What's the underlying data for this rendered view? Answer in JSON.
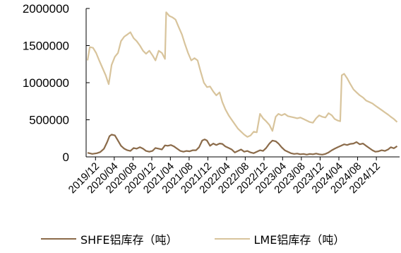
{
  "chart_data": {
    "type": "line",
    "title": "",
    "xlabel": "",
    "ylabel": "",
    "ylim": [
      0,
      2000000
    ],
    "yticks": [
      0,
      500000,
      1000000,
      1500000,
      2000000
    ],
    "ytick_labels": [
      "0",
      "500000",
      "1000000",
      "1500000",
      "2000000"
    ],
    "xlim": [
      "2019-10",
      "2025-05"
    ],
    "xticks": [
      "2019-12",
      "2020-04",
      "2020-08",
      "2020-12",
      "2021-04",
      "2021-08",
      "2021-12",
      "2022-04",
      "2022-08",
      "2022-12",
      "2023-04",
      "2023-08",
      "2023-12",
      "2024-04",
      "2024-08",
      "2024-12"
    ],
    "xtick_labels": [
      "2019/12",
      "2020/04",
      "2020/08",
      "2020/12",
      "2021/04",
      "2021/08",
      "2021/12",
      "2022/04",
      "2022/08",
      "2022/12",
      "2023/04",
      "2023/08",
      "2023/12",
      "2024/04",
      "2024/08",
      "2024/12"
    ],
    "grid": false,
    "legend_position": "bottom",
    "series": [
      {
        "name": "SHFE铝库存（吨）",
        "color": "#8B6B4A",
        "points": [
          [
            "2019-10-10",
            55000
          ],
          [
            "2019-11-10",
            40000
          ],
          [
            "2019-12-10",
            50000
          ],
          [
            "2020-01-01",
            65000
          ],
          [
            "2020-01-25",
            110000
          ],
          [
            "2020-02-15",
            200000
          ],
          [
            "2020-03-01",
            280000
          ],
          [
            "2020-03-15",
            300000
          ],
          [
            "2020-04-05",
            290000
          ],
          [
            "2020-04-25",
            220000
          ],
          [
            "2020-05-15",
            150000
          ],
          [
            "2020-06-05",
            110000
          ],
          [
            "2020-06-25",
            90000
          ],
          [
            "2020-07-15",
            80000
          ],
          [
            "2020-08-05",
            120000
          ],
          [
            "2020-08-25",
            110000
          ],
          [
            "2020-09-15",
            130000
          ],
          [
            "2020-10-05",
            110000
          ],
          [
            "2020-10-25",
            80000
          ],
          [
            "2020-11-15",
            70000
          ],
          [
            "2020-12-05",
            80000
          ],
          [
            "2020-12-25",
            120000
          ],
          [
            "2021-01-15",
            110000
          ],
          [
            "2021-02-05",
            100000
          ],
          [
            "2021-02-25",
            155000
          ],
          [
            "2021-03-15",
            150000
          ],
          [
            "2021-04-05",
            160000
          ],
          [
            "2021-04-25",
            140000
          ],
          [
            "2021-05-15",
            110000
          ],
          [
            "2021-06-05",
            80000
          ],
          [
            "2021-06-25",
            70000
          ],
          [
            "2021-07-15",
            80000
          ],
          [
            "2021-08-05",
            75000
          ],
          [
            "2021-08-25",
            90000
          ],
          [
            "2021-09-15",
            90000
          ],
          [
            "2021-10-05",
            130000
          ],
          [
            "2021-10-25",
            220000
          ],
          [
            "2021-11-10",
            235000
          ],
          [
            "2021-11-25",
            220000
          ],
          [
            "2021-12-15",
            150000
          ],
          [
            "2022-01-05",
            180000
          ],
          [
            "2022-01-25",
            160000
          ],
          [
            "2022-02-15",
            180000
          ],
          [
            "2022-03-05",
            175000
          ],
          [
            "2022-03-25",
            140000
          ],
          [
            "2022-04-15",
            120000
          ],
          [
            "2022-05-05",
            100000
          ],
          [
            "2022-05-25",
            60000
          ],
          [
            "2022-06-15",
            80000
          ],
          [
            "2022-07-05",
            100000
          ],
          [
            "2022-07-25",
            70000
          ],
          [
            "2022-08-15",
            80000
          ],
          [
            "2022-09-05",
            60000
          ],
          [
            "2022-09-25",
            50000
          ],
          [
            "2022-10-15",
            70000
          ],
          [
            "2022-11-05",
            90000
          ],
          [
            "2022-11-25",
            80000
          ],
          [
            "2022-12-15",
            120000
          ],
          [
            "2023-01-05",
            180000
          ],
          [
            "2023-01-25",
            220000
          ],
          [
            "2023-02-15",
            210000
          ],
          [
            "2023-03-05",
            180000
          ],
          [
            "2023-03-25",
            130000
          ],
          [
            "2023-04-15",
            90000
          ],
          [
            "2023-05-05",
            70000
          ],
          [
            "2023-05-25",
            50000
          ],
          [
            "2023-06-15",
            40000
          ],
          [
            "2023-07-05",
            45000
          ],
          [
            "2023-07-25",
            35000
          ],
          [
            "2023-08-15",
            40000
          ],
          [
            "2023-09-05",
            30000
          ],
          [
            "2023-09-25",
            40000
          ],
          [
            "2023-10-15",
            35000
          ],
          [
            "2023-11-05",
            45000
          ],
          [
            "2023-11-25",
            35000
          ],
          [
            "2023-12-15",
            30000
          ],
          [
            "2024-01-05",
            40000
          ],
          [
            "2024-01-25",
            60000
          ],
          [
            "2024-02-15",
            90000
          ],
          [
            "2024-03-05",
            110000
          ],
          [
            "2024-03-25",
            130000
          ],
          [
            "2024-04-15",
            150000
          ],
          [
            "2024-05-05",
            170000
          ],
          [
            "2024-05-25",
            160000
          ],
          [
            "2024-06-15",
            175000
          ],
          [
            "2024-07-05",
            180000
          ],
          [
            "2024-07-25",
            200000
          ],
          [
            "2024-08-15",
            170000
          ],
          [
            "2024-09-05",
            180000
          ],
          [
            "2024-09-25",
            150000
          ],
          [
            "2024-10-15",
            120000
          ],
          [
            "2024-11-05",
            90000
          ],
          [
            "2024-11-25",
            70000
          ],
          [
            "2024-12-15",
            75000
          ],
          [
            "2025-01-05",
            90000
          ],
          [
            "2025-01-25",
            80000
          ],
          [
            "2025-02-15",
            100000
          ],
          [
            "2025-03-05",
            130000
          ],
          [
            "2025-03-25",
            115000
          ],
          [
            "2025-04-15",
            145000
          ]
        ]
      },
      {
        "name": "LME铝库存（吨）",
        "color": "#D8C49C",
        "points": [
          [
            "2019-10-10",
            1300000
          ],
          [
            "2019-10-25",
            1480000
          ],
          [
            "2019-11-15",
            1470000
          ],
          [
            "2019-12-05",
            1400000
          ],
          [
            "2019-12-25",
            1300000
          ],
          [
            "2020-01-15",
            1200000
          ],
          [
            "2020-02-05",
            1100000
          ],
          [
            "2020-02-25",
            980000
          ],
          [
            "2020-03-15",
            1240000
          ],
          [
            "2020-04-05",
            1350000
          ],
          [
            "2020-04-25",
            1400000
          ],
          [
            "2020-05-15",
            1560000
          ],
          [
            "2020-06-05",
            1620000
          ],
          [
            "2020-06-25",
            1650000
          ],
          [
            "2020-07-15",
            1680000
          ],
          [
            "2020-08-05",
            1600000
          ],
          [
            "2020-08-25",
            1560000
          ],
          [
            "2020-09-15",
            1500000
          ],
          [
            "2020-10-05",
            1430000
          ],
          [
            "2020-10-25",
            1390000
          ],
          [
            "2020-11-15",
            1430000
          ],
          [
            "2020-12-05",
            1370000
          ],
          [
            "2020-12-25",
            1300000
          ],
          [
            "2021-01-15",
            1430000
          ],
          [
            "2021-02-05",
            1400000
          ],
          [
            "2021-02-25",
            1320000
          ],
          [
            "2021-03-05",
            1950000
          ],
          [
            "2021-03-25",
            1900000
          ],
          [
            "2021-04-15",
            1880000
          ],
          [
            "2021-05-05",
            1850000
          ],
          [
            "2021-05-25",
            1750000
          ],
          [
            "2021-06-15",
            1650000
          ],
          [
            "2021-07-05",
            1520000
          ],
          [
            "2021-07-25",
            1400000
          ],
          [
            "2021-08-15",
            1300000
          ],
          [
            "2021-09-05",
            1330000
          ],
          [
            "2021-09-25",
            1300000
          ],
          [
            "2021-10-15",
            1150000
          ],
          [
            "2021-11-05",
            1000000
          ],
          [
            "2021-11-25",
            940000
          ],
          [
            "2021-12-15",
            950000
          ],
          [
            "2022-01-05",
            880000
          ],
          [
            "2022-01-25",
            830000
          ],
          [
            "2022-02-15",
            870000
          ],
          [
            "2022-03-05",
            740000
          ],
          [
            "2022-03-25",
            640000
          ],
          [
            "2022-04-15",
            560000
          ],
          [
            "2022-05-05",
            500000
          ],
          [
            "2022-05-25",
            440000
          ],
          [
            "2022-06-15",
            380000
          ],
          [
            "2022-07-05",
            340000
          ],
          [
            "2022-07-25",
            300000
          ],
          [
            "2022-08-15",
            270000
          ],
          [
            "2022-09-05",
            290000
          ],
          [
            "2022-09-25",
            340000
          ],
          [
            "2022-10-15",
            330000
          ],
          [
            "2022-11-05",
            580000
          ],
          [
            "2022-11-25",
            520000
          ],
          [
            "2022-12-15",
            480000
          ],
          [
            "2023-01-05",
            430000
          ],
          [
            "2023-01-25",
            350000
          ],
          [
            "2023-02-15",
            540000
          ],
          [
            "2023-03-05",
            580000
          ],
          [
            "2023-03-25",
            560000
          ],
          [
            "2023-04-15",
            580000
          ],
          [
            "2023-05-05",
            550000
          ],
          [
            "2023-05-25",
            540000
          ],
          [
            "2023-06-15",
            530000
          ],
          [
            "2023-07-05",
            520000
          ],
          [
            "2023-07-25",
            530000
          ],
          [
            "2023-08-15",
            510000
          ],
          [
            "2023-09-05",
            490000
          ],
          [
            "2023-09-25",
            470000
          ],
          [
            "2023-10-15",
            460000
          ],
          [
            "2023-11-05",
            520000
          ],
          [
            "2023-11-25",
            560000
          ],
          [
            "2023-12-15",
            540000
          ],
          [
            "2024-01-05",
            530000
          ],
          [
            "2024-01-25",
            590000
          ],
          [
            "2024-02-15",
            560000
          ],
          [
            "2024-03-05",
            510000
          ],
          [
            "2024-03-25",
            490000
          ],
          [
            "2024-04-10",
            480000
          ],
          [
            "2024-04-20",
            1100000
          ],
          [
            "2024-05-05",
            1120000
          ],
          [
            "2024-05-25",
            1060000
          ],
          [
            "2024-06-15",
            980000
          ],
          [
            "2024-07-05",
            910000
          ],
          [
            "2024-07-25",
            870000
          ],
          [
            "2024-08-15",
            830000
          ],
          [
            "2024-09-05",
            800000
          ],
          [
            "2024-09-25",
            760000
          ],
          [
            "2024-10-15",
            740000
          ],
          [
            "2024-11-05",
            720000
          ],
          [
            "2024-11-25",
            690000
          ],
          [
            "2024-12-15",
            660000
          ],
          [
            "2025-01-05",
            630000
          ],
          [
            "2025-01-25",
            600000
          ],
          [
            "2025-02-15",
            570000
          ],
          [
            "2025-03-05",
            540000
          ],
          [
            "2025-03-25",
            510000
          ],
          [
            "2025-04-15",
            470000
          ]
        ]
      }
    ]
  }
}
